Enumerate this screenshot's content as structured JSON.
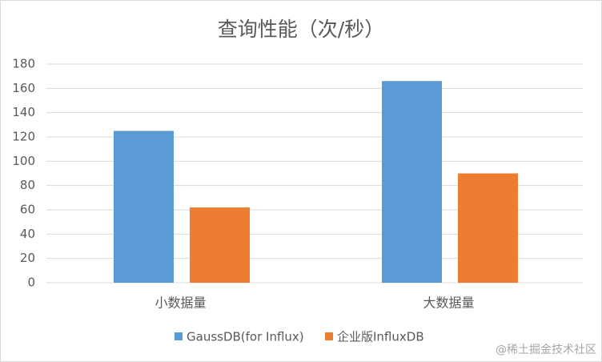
{
  "chart_data": {
    "type": "bar",
    "title": "查询性能（次/秒）",
    "categories": [
      "小数据量",
      "大数据量"
    ],
    "series": [
      {
        "name": "GaussDB(for Influx)",
        "color": "#5b9bd5",
        "values": [
          125,
          166
        ]
      },
      {
        "name": "企业版InfluxDB",
        "color": "#ed7d31",
        "values": [
          62,
          90
        ]
      }
    ],
    "ylim": [
      0,
      180
    ],
    "yticks": [
      0,
      20,
      40,
      60,
      80,
      100,
      120,
      140,
      160,
      180
    ],
    "grid": true,
    "legend": "bottom",
    "watermark": "@稀土掘金技术社区"
  }
}
